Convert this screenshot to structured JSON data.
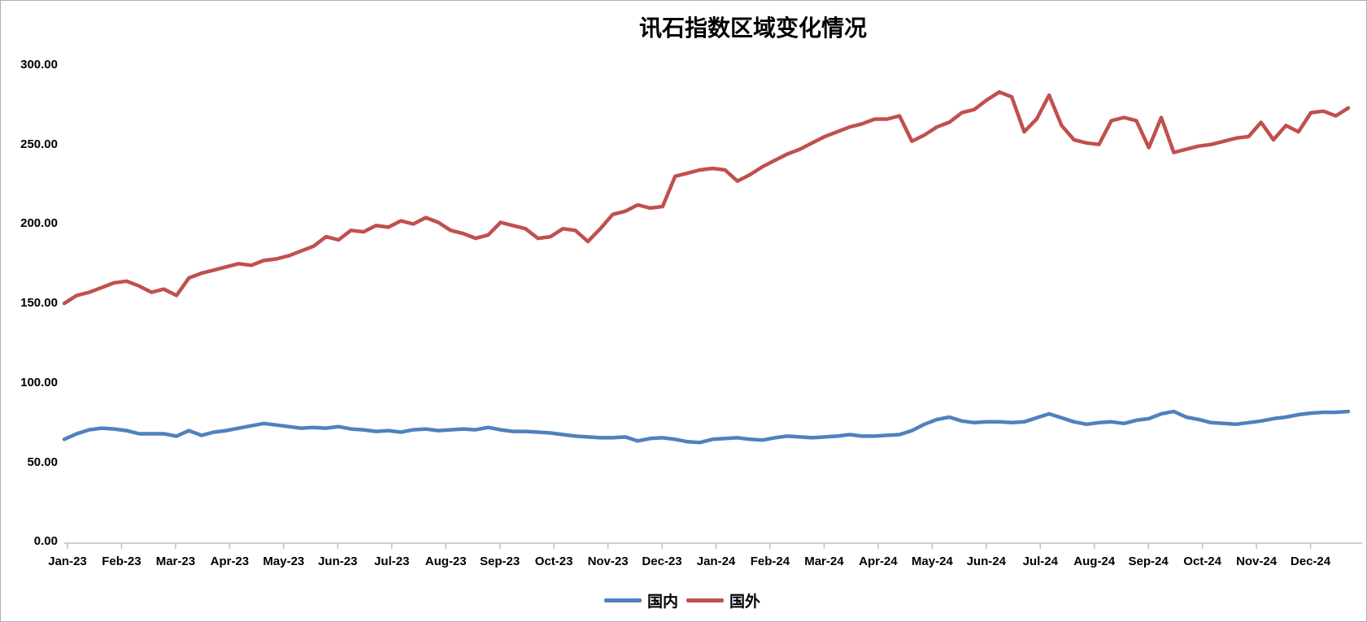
{
  "title": "讯石指数区域变化情况",
  "colors": {
    "domestic": "#4F81BD",
    "foreign": "#C0504D",
    "axis": "#BFBFBF",
    "text": "#000000",
    "frame_border": "#AEAEAE"
  },
  "legend": {
    "position": "bottom",
    "items": [
      {
        "label": "国内",
        "color": "#4F81BD"
      },
      {
        "label": "国外",
        "color": "#C0504D"
      }
    ]
  },
  "chart_data": {
    "type": "line",
    "title": "讯石指数区域变化情况",
    "xlabel": "",
    "ylabel": "",
    "ylim": [
      0,
      300
    ],
    "grid": false,
    "legend_position": "bottom",
    "x_resolution": "weekly",
    "categories": [
      "Jan-23",
      "Feb-23",
      "Mar-23",
      "Apr-23",
      "May-23",
      "Jun-23",
      "Jul-23",
      "Aug-23",
      "Sep-23",
      "Oct-23",
      "Nov-23",
      "Dec-23",
      "Jan-24",
      "Feb-24",
      "Mar-24",
      "Apr-24",
      "May-24",
      "Jun-24",
      "Jul-24",
      "Aug-24",
      "Sep-24",
      "Oct-24",
      "Nov-24",
      "Dec-24"
    ],
    "y_tick_labels": [
      "300.00",
      "250.00",
      "200.00",
      "150.00",
      "100.00",
      "50.00",
      "0.00"
    ],
    "series": [
      {
        "name": "国内",
        "color": "#4F81BD",
        "values": [
          64.5,
          68,
          70.5,
          71.5,
          71,
          70,
          68,
          68,
          68,
          66.5,
          70,
          67,
          69,
          70,
          71.5,
          73,
          74.5,
          73.5,
          72.5,
          71.5,
          72,
          71.5,
          72.5,
          71,
          70.5,
          69.5,
          70,
          69,
          70.5,
          71,
          70,
          70.5,
          71,
          70.5,
          72,
          70.5,
          69.5,
          69.5,
          69,
          68.5,
          67.5,
          66.5,
          66,
          65.5,
          65.5,
          66,
          63.5,
          65,
          65.5,
          64.5,
          63,
          62.5,
          64.5,
          65,
          65.5,
          64.5,
          64,
          65.5,
          66.5,
          66,
          65.5,
          66,
          66.5,
          67.5,
          66.5,
          66.5,
          67,
          67.5,
          70,
          74,
          77,
          78.5,
          76,
          75,
          75.5,
          75.5,
          75,
          75.5,
          78,
          80.5,
          78,
          75.5,
          74,
          75,
          75.5,
          74.5,
          76.5,
          77.5,
          80.5,
          82,
          78.5,
          77,
          75,
          74.5,
          74,
          75,
          76,
          77.5,
          78.5,
          80,
          81,
          81.5,
          81.5,
          82
        ]
      },
      {
        "name": "国外",
        "color": "#C0504D",
        "values": [
          150,
          155,
          157,
          160,
          163,
          164,
          161,
          157,
          159,
          155,
          166,
          169,
          171,
          173,
          175,
          174,
          177,
          178,
          180,
          183,
          186,
          192,
          190,
          196,
          195,
          199,
          198,
          202,
          200,
          204,
          201,
          196,
          194,
          191,
          193,
          201,
          199,
          197,
          191,
          192,
          197,
          196,
          189,
          197,
          206,
          208,
          212,
          210,
          211,
          230,
          232,
          234,
          235,
          234,
          227,
          231,
          236,
          240,
          244,
          247,
          251,
          255,
          258,
          261,
          263,
          266,
          266,
          268,
          252,
          256,
          261,
          264,
          270,
          272,
          278,
          283,
          280,
          258,
          266,
          281,
          262,
          253,
          251,
          250,
          265,
          267,
          265,
          248,
          267,
          245,
          247,
          249,
          250,
          252,
          254,
          255,
          264,
          253,
          262,
          258,
          270,
          271,
          268,
          273
        ]
      }
    ]
  }
}
